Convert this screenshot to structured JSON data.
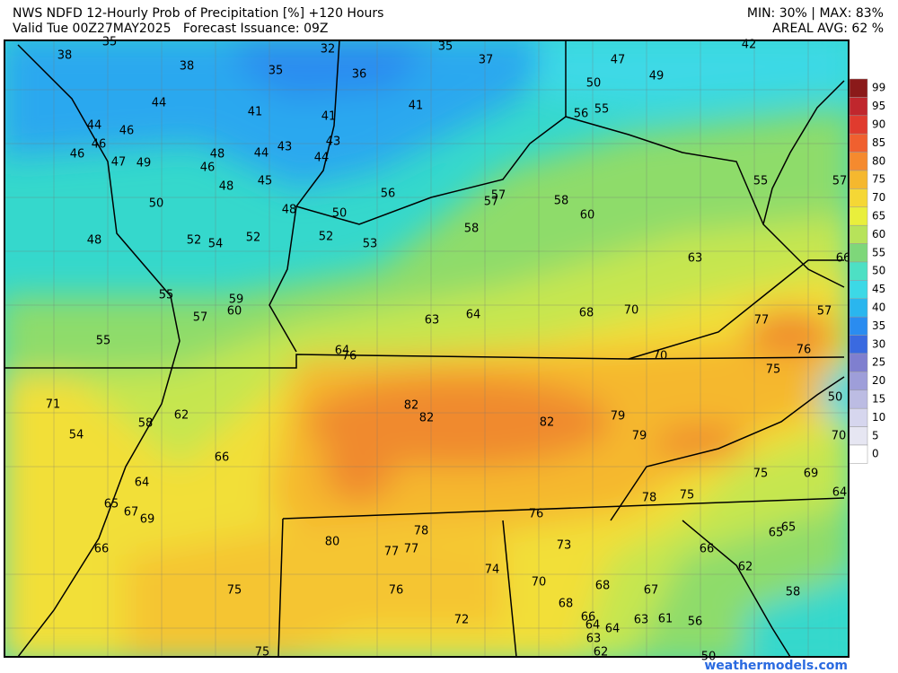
{
  "header": {
    "title": "NWS NDFD 12-Hourly Prob of Precipitation [%] +120 Hours",
    "valid": "Valid Tue 00Z27MAY2025   Forecast Issuance: 09Z",
    "minmax": "MIN: 30% | MAX: 83%",
    "areal": "AREAL AVG: 62 %"
  },
  "points": [
    35,
    38,
    38,
    35,
    32,
    36,
    35,
    37,
    42,
    47,
    49,
    50,
    44,
    41,
    41,
    41,
    56,
    55,
    44,
    46,
    46,
    46,
    47,
    49,
    48,
    44,
    43,
    43,
    44,
    46,
    45,
    48,
    56,
    57,
    57,
    58,
    60,
    55,
    57,
    50,
    48,
    50,
    52,
    58,
    53,
    52,
    54,
    52,
    48,
    63,
    66,
    55,
    59,
    60,
    57,
    63,
    64,
    68,
    70,
    77,
    57,
    55,
    64,
    76,
    76,
    70,
    75,
    71,
    50,
    82,
    82,
    82,
    79,
    79,
    70,
    58,
    62,
    54,
    66,
    75,
    69,
    64,
    78,
    75,
    64,
    65,
    67,
    69,
    76,
    66,
    80,
    78,
    77,
    77,
    73,
    65,
    65,
    66,
    62,
    74,
    70,
    68,
    75,
    76,
    67,
    58,
    68,
    66,
    64,
    63,
    61,
    56,
    64,
    72,
    63,
    62,
    75,
    50
  ],
  "legend": {
    "values": [
      99,
      95,
      90,
      85,
      80,
      75,
      70,
      65,
      60,
      55,
      50,
      45,
      40,
      35,
      30,
      25,
      20,
      15,
      10,
      5,
      0
    ],
    "colors": [
      "#8b1a1a",
      "#c0272d",
      "#e03b2e",
      "#f0602f",
      "#f58a2e",
      "#f5b82e",
      "#f5d735",
      "#e9ef3c",
      "#b7e35a",
      "#7ed77a",
      "#4de0c4",
      "#3cd9e6",
      "#2ab6ee",
      "#2a8cf0",
      "#3a6ae0",
      "#7f7fcf",
      "#9e9ed9",
      "#bcbce3",
      "#d6d6ee",
      "#e6e6f2",
      "#ffffff"
    ]
  },
  "footer": "weathermodels.com"
}
